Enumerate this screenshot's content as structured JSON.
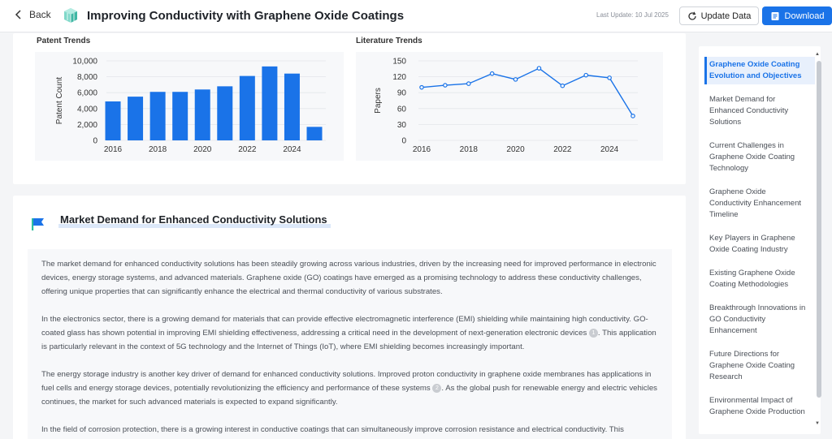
{
  "header": {
    "back_label": "Back",
    "title": "Improving Conductivity with Graphene Oxide Coatings",
    "last_update": "Last Update: 10 Jul 2025",
    "update_label": "Update Data",
    "download_label": "Download",
    "accent_color": "#1a73e8"
  },
  "charts": {
    "patent_title": "Patent Trends",
    "literature_title": "Literature Trends"
  },
  "chart_data": [
    {
      "type": "bar",
      "title": "Patent Trends",
      "xlabel": "",
      "ylabel": "Patent Count",
      "x": [
        2016,
        2017,
        2018,
        2019,
        2020,
        2021,
        2022,
        2023,
        2024,
        2025
      ],
      "values": [
        4900,
        5500,
        6100,
        6100,
        6400,
        6800,
        8100,
        9300,
        8400,
        1700
      ],
      "xticks": [
        "2016",
        "2018",
        "2020",
        "2022",
        "2024"
      ],
      "yticks": [
        "0",
        "2,000",
        "4,000",
        "6,000",
        "8,000",
        "10,000"
      ],
      "ylim": [
        0,
        10000
      ],
      "color": "#1a73e8",
      "grid": true
    },
    {
      "type": "line",
      "title": "Literature Trends",
      "xlabel": "",
      "ylabel": "Papers",
      "x": [
        2016,
        2017,
        2018,
        2019,
        2020,
        2021,
        2022,
        2023,
        2024,
        2025
      ],
      "values": [
        100,
        104,
        107,
        126,
        115,
        136,
        103,
        123,
        118,
        46
      ],
      "xticks": [
        "2016",
        "2018",
        "2020",
        "2022",
        "2024"
      ],
      "yticks": [
        "0",
        "30",
        "60",
        "90",
        "120",
        "150"
      ],
      "ylim": [
        0,
        150
      ],
      "color": "#1a73e8",
      "grid": true
    }
  ],
  "section": {
    "title": "Market Demand for Enhanced Conductivity Solutions",
    "p1": "The market demand for enhanced conductivity solutions has been steadily growing across various industries, driven by the increasing need for improved performance in electronic devices, energy storage systems, and advanced materials. Graphene oxide (GO) coatings have emerged as a promising technology to address these conductivity challenges, offering unique properties that can significantly enhance the electrical and thermal conductivity of various substrates.",
    "p2a": "In the electronics sector, there is a growing demand for materials that can provide effective electromagnetic interference (EMI) shielding while maintaining high conductivity. GO-coated glass has shown potential in improving EMI shielding effectiveness, addressing a critical need in the development of next-generation electronic devices",
    "cite1": "1",
    "p2b": ". This application is particularly relevant in the context of 5G technology and the Internet of Things (IoT), where EMI shielding becomes increasingly important.",
    "p3a": "The energy storage industry is another key driver of demand for enhanced conductivity solutions. Improved proton conductivity in graphene oxide membranes has applications in fuel cells and energy storage devices, potentially revolutionizing the efficiency and performance of these systems",
    "cite2": "2",
    "p3b": ". As the global push for renewable energy and electric vehicles continues, the market for such advanced materials is expected to expand significantly.",
    "p4": "In the field of corrosion protection, there is a growing interest in conductive coatings that can simultaneously improve corrosion resistance and electrical conductivity. This"
  },
  "toc": {
    "items": [
      "Graphene Oxide Coating Evolution and Objectives",
      "Market Demand for Enhanced Conductivity Solutions",
      "Current Challenges in Graphene Oxide Coating Technology",
      "Graphene Oxide Conductivity Enhancement Timeline",
      "Key Players in Graphene Oxide Coating Industry",
      "Existing Graphene Oxide Coating Methodologies",
      "Breakthrough Innovations in GO Conductivity Enhancement",
      "Future Directions for Graphene Oxide Coating Research",
      "Environmental Impact of Graphene Oxide Production"
    ]
  }
}
